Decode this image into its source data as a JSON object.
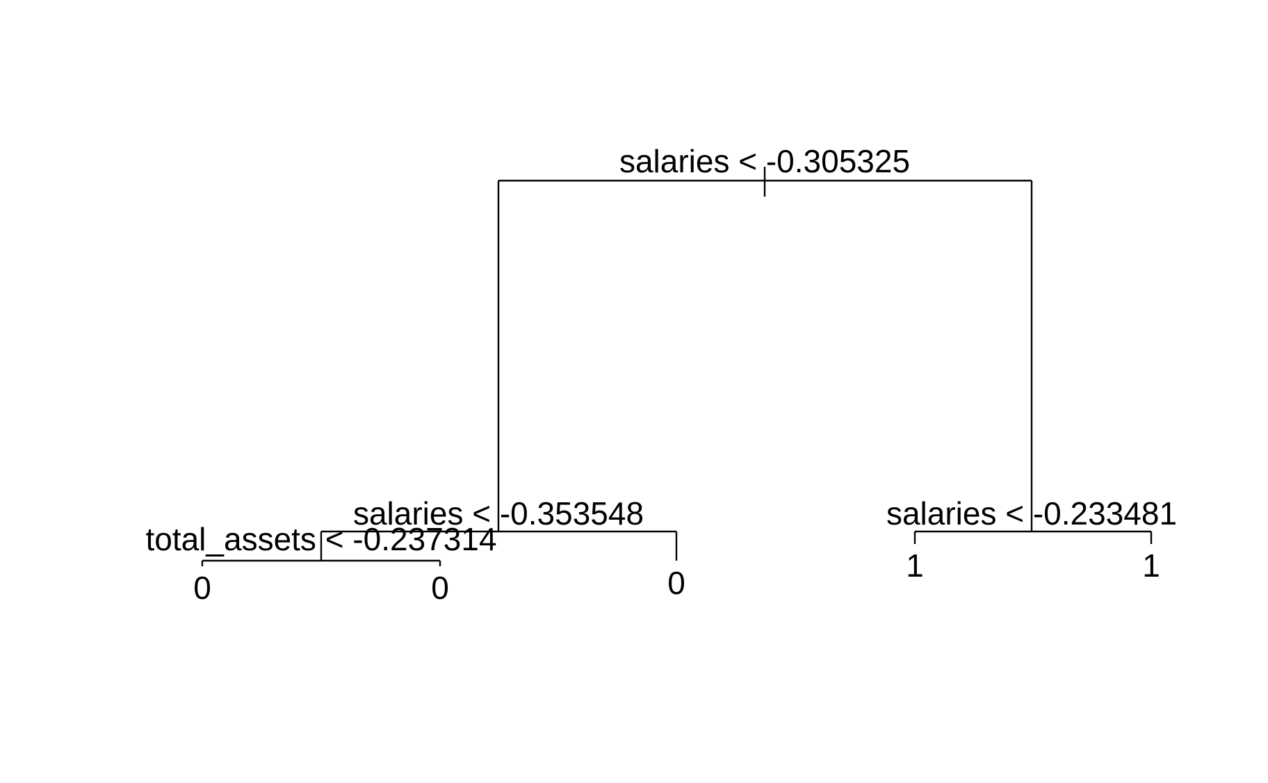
{
  "tree": {
    "splits": [
      {
        "id": "root",
        "text": "salaries < -0.305325"
      },
      {
        "id": "left",
        "text": "salaries < -0.353548"
      },
      {
        "id": "left-left",
        "text": "total_assets < -0.237314"
      },
      {
        "id": "right",
        "text": "salaries < -0.233481"
      }
    ],
    "leaves": [
      {
        "id": "leaf-1",
        "text": "0"
      },
      {
        "id": "leaf-2",
        "text": "0"
      },
      {
        "id": "leaf-3",
        "text": "0"
      },
      {
        "id": "leaf-4",
        "text": "1"
      },
      {
        "id": "leaf-5",
        "text": "1"
      }
    ]
  }
}
